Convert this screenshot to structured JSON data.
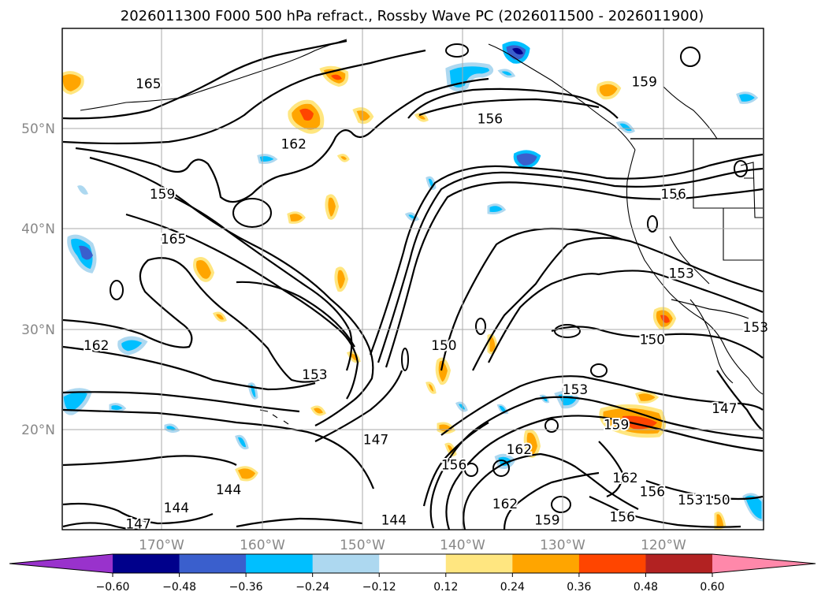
{
  "chart_data": {
    "type": "contour_map",
    "title": "2026011300 F000 500 hPa refract., Rossby Wave PC (2026011500 - 2026011900)",
    "x_ticks": [
      "170°W",
      "160°W",
      "150°W",
      "140°W",
      "130°W",
      "120°W"
    ],
    "x_tick_values": [
      -170,
      -160,
      -150,
      -140,
      -130,
      -120
    ],
    "y_ticks": [
      "50°N",
      "40°N",
      "30°N",
      "20°N"
    ],
    "y_tick_values": [
      50,
      40,
      30,
      20
    ],
    "xlim": [
      -180,
      -110
    ],
    "ylim": [
      10,
      60
    ],
    "grid": true,
    "contour_variable": "500 hPa refractivity",
    "contour_labels": [
      {
        "text": "165",
        "lon": -171.4,
        "lat": 54.5
      },
      {
        "text": "162",
        "lon": -156.9,
        "lat": 48.5
      },
      {
        "text": "159",
        "lon": -170.0,
        "lat": 43.5
      },
      {
        "text": "165",
        "lon": -168.9,
        "lat": 39.0
      },
      {
        "text": "156",
        "lon": -137.3,
        "lat": 51.0
      },
      {
        "text": "159",
        "lon": -121.9,
        "lat": 54.7
      },
      {
        "text": "156",
        "lon": -119.0,
        "lat": 43.5
      },
      {
        "text": "153",
        "lon": -118.2,
        "lat": 35.6
      },
      {
        "text": "150",
        "lon": -121.1,
        "lat": 29.0
      },
      {
        "text": "153",
        "lon": -128.8,
        "lat": 24.0
      },
      {
        "text": "150",
        "lon": -141.9,
        "lat": 28.4
      },
      {
        "text": "162",
        "lon": -176.6,
        "lat": 28.4
      },
      {
        "text": "153",
        "lon": -154.8,
        "lat": 25.5
      },
      {
        "text": "147",
        "lon": -148.7,
        "lat": 19.0
      },
      {
        "text": "144",
        "lon": -163.4,
        "lat": 14.0
      },
      {
        "text": "144",
        "lon": -168.6,
        "lat": 12.2
      },
      {
        "text": "147",
        "lon": -172.4,
        "lat": 10.6
      },
      {
        "text": "144",
        "lon": -146.9,
        "lat": 11.0
      },
      {
        "text": "159",
        "lon": -124.7,
        "lat": 20.5
      },
      {
        "text": "162",
        "lon": -134.4,
        "lat": 18.0
      },
      {
        "text": "156",
        "lon": -140.9,
        "lat": 16.5
      },
      {
        "text": "162",
        "lon": -135.8,
        "lat": 12.6
      },
      {
        "text": "159",
        "lon": -131.6,
        "lat": 11.0
      },
      {
        "text": "156",
        "lon": -124.1,
        "lat": 11.3
      },
      {
        "text": "162",
        "lon": -123.8,
        "lat": 15.2
      },
      {
        "text": "156",
        "lon": -121.1,
        "lat": 13.8
      },
      {
        "text": "153",
        "lon": -117.3,
        "lat": 13.0
      },
      {
        "text": "150",
        "lon": -114.6,
        "lat": 13.0
      },
      {
        "text": "147",
        "lon": -113.9,
        "lat": 22.1
      },
      {
        "text": "153",
        "lon": -110.8,
        "lat": 30.2
      }
    ],
    "filled_variable": "Rossby Wave PC",
    "colorbar": {
      "ticks": [
        "−0.60",
        "−0.48",
        "−0.36",
        "−0.24",
        "−0.12",
        "0.12",
        "0.24",
        "0.36",
        "0.48",
        "0.60"
      ],
      "levels": [
        -0.6,
        -0.48,
        -0.36,
        -0.24,
        -0.12,
        0.12,
        0.24,
        0.36,
        0.48,
        0.6
      ],
      "colors": [
        "#9932cc",
        "#00008b",
        "#3a5fcd",
        "#00bfff",
        "#add8f0",
        "#ffffff",
        "#ffe680",
        "#ffa500",
        "#ff4500",
        "#b22222",
        "#ff88aa"
      ],
      "extend": "both"
    }
  }
}
